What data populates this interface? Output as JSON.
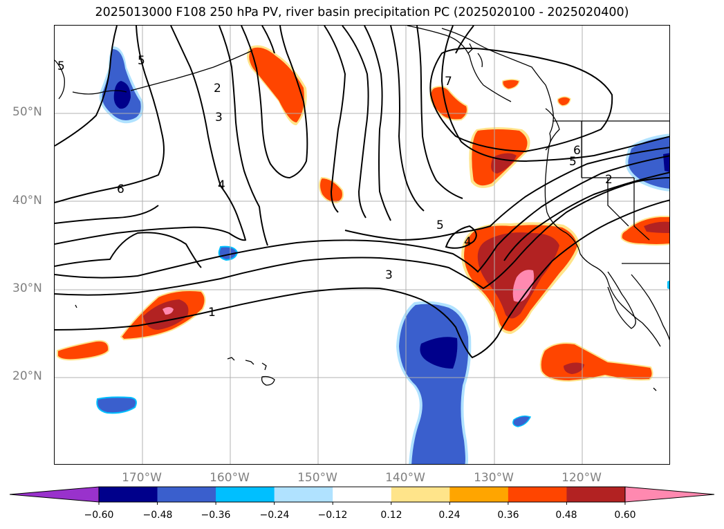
{
  "title": "2025013000 F108 250 hPa PV, river basin precipitation PC (2025020100 - 2025020400)",
  "lat_labels": [
    "50°N",
    "40°N",
    "30°N",
    "20°N"
  ],
  "lon_labels": [
    "170°W",
    "160°W",
    "150°W",
    "140°W",
    "130°W",
    "120°W"
  ],
  "contour_labels": [
    "5",
    "5",
    "2",
    "3",
    "6",
    "4",
    "1",
    "3",
    "5",
    "4",
    "7",
    "6",
    "5",
    "2"
  ],
  "colorbar": {
    "tick_labels": [
      "−0.60",
      "−0.48",
      "−0.36",
      "−0.24",
      "−0.12",
      "0.12",
      "0.24",
      "0.36",
      "0.48",
      "0.60"
    ],
    "colors": [
      "#9932cc",
      "#00008b",
      "#3a5fcd",
      "#00bfff",
      "#b0e2ff",
      "#ffffff",
      "#ffe48a",
      "#ffa500",
      "#ff4500",
      "#b22222",
      "#ff89b0"
    ],
    "extend": "both"
  },
  "colors": {
    "contour": "#000000",
    "coast": "#000000",
    "grid": "#b0b0b0",
    "axis_label": "#7f7f7f"
  }
}
